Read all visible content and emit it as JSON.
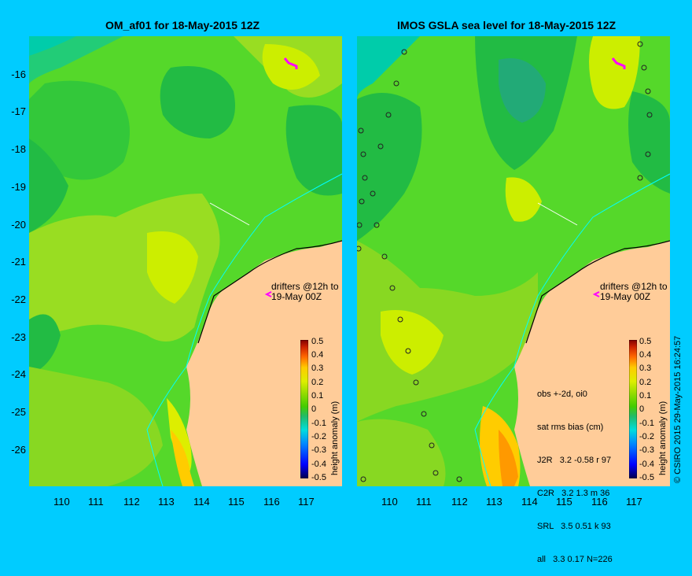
{
  "left_panel": {
    "title": "OM_af01 for 18-May-2015 12Z",
    "drifters_note": [
      "drifters @12h to",
      "19-May 00Z"
    ]
  },
  "right_panel": {
    "title": "IMOS GSLA sea level  for 18-May-2015 12Z",
    "drifters_note": [
      "drifters @12h to",
      "19-May 00Z"
    ],
    "stats": {
      "header": [
        "obs +-2d, oi0",
        "sat rms bias (cm)"
      ],
      "rows": [
        "J2R   3.2 -0.58 r 97",
        "C2R   3.2 1.3 m 36",
        "SRL   3.5 0.51 k 93",
        "all   3.3 0.17 N=226"
      ]
    }
  },
  "y_axis_labels": [
    "-16",
    "-17",
    "-18",
    "-19",
    "-20",
    "-21",
    "-22",
    "-23",
    "-24",
    "-25",
    "-26"
  ],
  "x_axis_labels": [
    "110",
    "111",
    "112",
    "113",
    "114",
    "115",
    "116",
    "117"
  ],
  "colorbar": {
    "title": "height anomaly (m)",
    "labels": [
      "0.5",
      "0.4",
      "0.3",
      "0.2",
      "0.1",
      "0",
      "-0.1",
      "-0.2",
      "-0.3",
      "-0.4",
      "-0.5"
    ],
    "colors": [
      "#00004c",
      "#0000ff",
      "#0088ff",
      "#00dddd",
      "#22bb66",
      "#44cc00",
      "#99dd00",
      "#ddee00",
      "#ffcc00",
      "#ff6600",
      "#cc2200",
      "#800000"
    ]
  },
  "copyright": "© CSIRO 2015   29-May-2015 16:24:57",
  "colors": {
    "background": "#00ccff",
    "land": "#ffcc99",
    "sea_base": "#55d82a",
    "coastline": "#000000",
    "drifter": "#ff00ff"
  }
}
